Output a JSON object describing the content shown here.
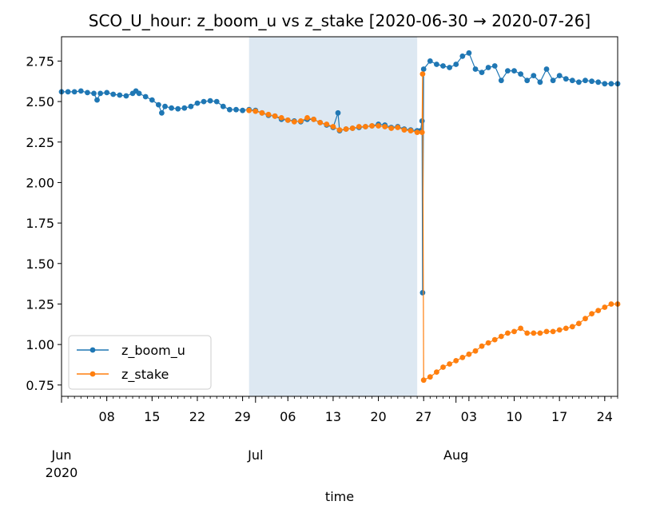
{
  "chart_data": {
    "type": "line",
    "title": "SCO_U_hour: z_boom_u vs z_stake  [2020-06-30 → 2020-07-26]",
    "xlabel": "time",
    "ylabel": "",
    "xlim": [
      "2020-06-01",
      "2020-08-26"
    ],
    "ylim": [
      0.68,
      2.9
    ],
    "y_ticks": [
      "0.75",
      "1.00",
      "1.25",
      "1.50",
      "1.75",
      "2.00",
      "2.25",
      "2.50",
      "2.75"
    ],
    "x_ticks": [
      {
        "date": "2020-06-01",
        "label": "Jun\n2020"
      },
      {
        "date": "2020-06-08",
        "label": "08"
      },
      {
        "date": "2020-06-15",
        "label": "15"
      },
      {
        "date": "2020-06-22",
        "label": "22"
      },
      {
        "date": "2020-06-29",
        "label": "29"
      },
      {
        "date": "2020-07-01",
        "label": "Jul"
      },
      {
        "date": "2020-07-06",
        "label": "06"
      },
      {
        "date": "2020-07-13",
        "label": "13"
      },
      {
        "date": "2020-07-20",
        "label": "20"
      },
      {
        "date": "2020-07-27",
        "label": "27"
      },
      {
        "date": "2020-08-01",
        "label": "Aug"
      },
      {
        "date": "2020-08-03",
        "label": "03"
      },
      {
        "date": "2020-08-10",
        "label": "10"
      },
      {
        "date": "2020-08-17",
        "label": "17"
      },
      {
        "date": "2020-08-24",
        "label": "24"
      }
    ],
    "highlight_span": [
      "2020-06-30",
      "2020-07-26"
    ],
    "grid": false,
    "legend_position": "lower-left",
    "series": [
      {
        "name": "z_boom_u",
        "color": "#1f77b4",
        "points": [
          [
            "2020-06-01",
            2.56
          ],
          [
            "2020-06-02",
            2.56
          ],
          [
            "2020-06-03",
            2.56
          ],
          [
            "2020-06-04",
            2.565
          ],
          [
            "2020-06-05",
            2.555
          ],
          [
            "2020-06-06",
            2.55
          ],
          [
            "2020-06-06T12:00",
            2.51
          ],
          [
            "2020-06-07",
            2.55
          ],
          [
            "2020-06-08",
            2.555
          ],
          [
            "2020-06-09",
            2.545
          ],
          [
            "2020-06-10",
            2.54
          ],
          [
            "2020-06-11",
            2.535
          ],
          [
            "2020-06-12",
            2.55
          ],
          [
            "2020-06-12T12:00",
            2.565
          ],
          [
            "2020-06-13",
            2.55
          ],
          [
            "2020-06-14",
            2.53
          ],
          [
            "2020-06-15",
            2.51
          ],
          [
            "2020-06-16",
            2.48
          ],
          [
            "2020-06-16T12:00",
            2.43
          ],
          [
            "2020-06-17",
            2.47
          ],
          [
            "2020-06-18",
            2.46
          ],
          [
            "2020-06-19",
            2.455
          ],
          [
            "2020-06-20",
            2.46
          ],
          [
            "2020-06-21",
            2.47
          ],
          [
            "2020-06-22",
            2.49
          ],
          [
            "2020-06-23",
            2.5
          ],
          [
            "2020-06-24",
            2.505
          ],
          [
            "2020-06-25",
            2.5
          ],
          [
            "2020-06-26",
            2.47
          ],
          [
            "2020-06-27",
            2.45
          ],
          [
            "2020-06-28",
            2.45
          ],
          [
            "2020-06-29",
            2.445
          ],
          [
            "2020-06-30",
            2.45
          ],
          [
            "2020-07-01",
            2.445
          ],
          [
            "2020-07-02",
            2.43
          ],
          [
            "2020-07-03",
            2.415
          ],
          [
            "2020-07-04",
            2.41
          ],
          [
            "2020-07-05",
            2.39
          ],
          [
            "2020-07-06",
            2.385
          ],
          [
            "2020-07-07",
            2.38
          ],
          [
            "2020-07-08",
            2.375
          ],
          [
            "2020-07-09",
            2.39
          ],
          [
            "2020-07-10",
            2.39
          ],
          [
            "2020-07-11",
            2.37
          ],
          [
            "2020-07-12",
            2.355
          ],
          [
            "2020-07-13",
            2.34
          ],
          [
            "2020-07-13T18:00",
            2.43
          ],
          [
            "2020-07-14",
            2.32
          ],
          [
            "2020-07-15",
            2.33
          ],
          [
            "2020-07-16",
            2.335
          ],
          [
            "2020-07-17",
            2.34
          ],
          [
            "2020-07-18",
            2.345
          ],
          [
            "2020-07-19",
            2.35
          ],
          [
            "2020-07-20",
            2.36
          ],
          [
            "2020-07-21",
            2.355
          ],
          [
            "2020-07-22",
            2.34
          ],
          [
            "2020-07-23",
            2.345
          ],
          [
            "2020-07-24",
            2.33
          ],
          [
            "2020-07-25",
            2.325
          ],
          [
            "2020-07-26",
            2.32
          ],
          [
            "2020-07-26T12:00",
            2.32
          ],
          [
            "2020-07-26T18:00",
            2.38
          ],
          [
            "2020-07-26T20:00",
            1.32
          ],
          [
            "2020-07-27",
            2.7
          ],
          [
            "2020-07-28",
            2.75
          ],
          [
            "2020-07-29",
            2.73
          ],
          [
            "2020-07-30",
            2.72
          ],
          [
            "2020-07-31",
            2.71
          ],
          [
            "2020-08-01",
            2.73
          ],
          [
            "2020-08-02",
            2.78
          ],
          [
            "2020-08-03",
            2.8
          ],
          [
            "2020-08-04",
            2.7
          ],
          [
            "2020-08-05",
            2.68
          ],
          [
            "2020-08-06",
            2.71
          ],
          [
            "2020-08-07",
            2.72
          ],
          [
            "2020-08-08",
            2.63
          ],
          [
            "2020-08-09",
            2.69
          ],
          [
            "2020-08-10",
            2.69
          ],
          [
            "2020-08-11",
            2.67
          ],
          [
            "2020-08-12",
            2.63
          ],
          [
            "2020-08-13",
            2.66
          ],
          [
            "2020-08-14",
            2.62
          ],
          [
            "2020-08-15",
            2.7
          ],
          [
            "2020-08-16",
            2.63
          ],
          [
            "2020-08-17",
            2.66
          ],
          [
            "2020-08-18",
            2.64
          ],
          [
            "2020-08-19",
            2.63
          ],
          [
            "2020-08-20",
            2.62
          ],
          [
            "2020-08-21",
            2.63
          ],
          [
            "2020-08-22",
            2.625
          ],
          [
            "2020-08-23",
            2.62
          ],
          [
            "2020-08-24",
            2.61
          ],
          [
            "2020-08-25",
            2.61
          ],
          [
            "2020-08-26",
            2.61
          ]
        ]
      },
      {
        "name": "z_stake",
        "color": "#ff7f0e",
        "points": [
          [
            "2020-06-30",
            2.445
          ],
          [
            "2020-07-01",
            2.44
          ],
          [
            "2020-07-02",
            2.43
          ],
          [
            "2020-07-03",
            2.42
          ],
          [
            "2020-07-04",
            2.41
          ],
          [
            "2020-07-05",
            2.4
          ],
          [
            "2020-07-06",
            2.385
          ],
          [
            "2020-07-07",
            2.375
          ],
          [
            "2020-07-08",
            2.38
          ],
          [
            "2020-07-09",
            2.4
          ],
          [
            "2020-07-10",
            2.39
          ],
          [
            "2020-07-11",
            2.37
          ],
          [
            "2020-07-12",
            2.36
          ],
          [
            "2020-07-13",
            2.345
          ],
          [
            "2020-07-14",
            2.325
          ],
          [
            "2020-07-15",
            2.33
          ],
          [
            "2020-07-16",
            2.335
          ],
          [
            "2020-07-17",
            2.345
          ],
          [
            "2020-07-18",
            2.345
          ],
          [
            "2020-07-19",
            2.35
          ],
          [
            "2020-07-20",
            2.35
          ],
          [
            "2020-07-21",
            2.345
          ],
          [
            "2020-07-22",
            2.335
          ],
          [
            "2020-07-23",
            2.34
          ],
          [
            "2020-07-24",
            2.325
          ],
          [
            "2020-07-25",
            2.32
          ],
          [
            "2020-07-26",
            2.31
          ],
          [
            "2020-07-26T18:00",
            2.31
          ],
          [
            "2020-07-26T20:00",
            2.67
          ],
          [
            "2020-07-27",
            0.78
          ],
          [
            "2020-07-28",
            0.8
          ],
          [
            "2020-07-29",
            0.83
          ],
          [
            "2020-07-30",
            0.86
          ],
          [
            "2020-07-31",
            0.88
          ],
          [
            "2020-08-01",
            0.9
          ],
          [
            "2020-08-02",
            0.92
          ],
          [
            "2020-08-03",
            0.94
          ],
          [
            "2020-08-04",
            0.96
          ],
          [
            "2020-08-05",
            0.99
          ],
          [
            "2020-08-06",
            1.01
          ],
          [
            "2020-08-07",
            1.03
          ],
          [
            "2020-08-08",
            1.05
          ],
          [
            "2020-08-09",
            1.07
          ],
          [
            "2020-08-10",
            1.08
          ],
          [
            "2020-08-11",
            1.1
          ],
          [
            "2020-08-12",
            1.07
          ],
          [
            "2020-08-13",
            1.07
          ],
          [
            "2020-08-14",
            1.07
          ],
          [
            "2020-08-15",
            1.08
          ],
          [
            "2020-08-16",
            1.08
          ],
          [
            "2020-08-17",
            1.09
          ],
          [
            "2020-08-18",
            1.1
          ],
          [
            "2020-08-19",
            1.11
          ],
          [
            "2020-08-20",
            1.13
          ],
          [
            "2020-08-21",
            1.16
          ],
          [
            "2020-08-22",
            1.19
          ],
          [
            "2020-08-23",
            1.21
          ],
          [
            "2020-08-24",
            1.23
          ],
          [
            "2020-08-25",
            1.25
          ],
          [
            "2020-08-26",
            1.25
          ]
        ]
      }
    ]
  }
}
